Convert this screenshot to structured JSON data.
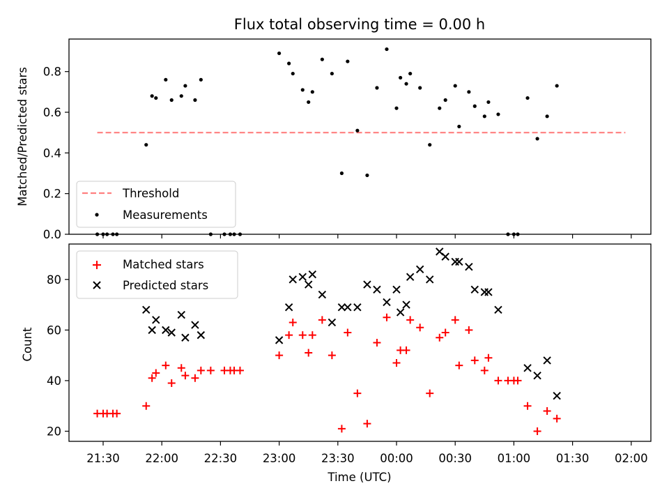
{
  "chart_data": [
    {
      "type": "scatter",
      "title": "Flux total observing time = 0.00 h",
      "ylabel": "Matched/Predicted stars",
      "xlabel": "",
      "ylim": [
        0,
        0.96
      ],
      "yticks": [
        "0.0",
        "0.2",
        "0.4",
        "0.6",
        "0.8"
      ],
      "legend_position": "lower-left",
      "threshold": {
        "name": "Threshold",
        "value": 0.5,
        "x_start": "21:27",
        "x_end": "01:57",
        "color": "#ff7f7f"
      },
      "series": [
        {
          "name": "Measurements",
          "color": "#000000",
          "points": [
            [
              "21:27",
              0.0
            ],
            [
              "21:30",
              0.0
            ],
            [
              "21:32",
              0.0
            ],
            [
              "21:35",
              0.0
            ],
            [
              "21:37",
              0.0
            ],
            [
              "21:52",
              0.44
            ],
            [
              "21:55",
              0.68
            ],
            [
              "21:57",
              0.67
            ],
            [
              "22:02",
              0.76
            ],
            [
              "22:05",
              0.66
            ],
            [
              "22:10",
              0.68
            ],
            [
              "22:12",
              0.73
            ],
            [
              "22:17",
              0.66
            ],
            [
              "22:20",
              0.76
            ],
            [
              "22:25",
              0.0
            ],
            [
              "22:32",
              0.0
            ],
            [
              "22:35",
              0.0
            ],
            [
              "22:37",
              0.0
            ],
            [
              "22:40",
              0.0
            ],
            [
              "23:00",
              0.89
            ],
            [
              "23:05",
              0.84
            ],
            [
              "23:07",
              0.79
            ],
            [
              "23:12",
              0.71
            ],
            [
              "23:15",
              0.65
            ],
            [
              "23:17",
              0.7
            ],
            [
              "23:22",
              0.86
            ],
            [
              "23:27",
              0.79
            ],
            [
              "23:32",
              0.3
            ],
            [
              "23:35",
              0.85
            ],
            [
              "23:40",
              0.51
            ],
            [
              "23:45",
              0.29
            ],
            [
              "23:50",
              0.72
            ],
            [
              "23:55",
              0.91
            ],
            [
              "00:00",
              0.62
            ],
            [
              "00:02",
              0.77
            ],
            [
              "00:05",
              0.74
            ],
            [
              "00:07",
              0.79
            ],
            [
              "00:12",
              0.72
            ],
            [
              "00:17",
              0.44
            ],
            [
              "00:22",
              0.62
            ],
            [
              "00:25",
              0.66
            ],
            [
              "00:30",
              0.73
            ],
            [
              "00:32",
              0.53
            ],
            [
              "00:37",
              0.7
            ],
            [
              "00:40",
              0.63
            ],
            [
              "00:45",
              0.58
            ],
            [
              "00:47",
              0.65
            ],
            [
              "00:52",
              0.59
            ],
            [
              "00:57",
              0.0
            ],
            [
              "01:00",
              0.0
            ],
            [
              "01:02",
              0.0
            ],
            [
              "01:07",
              0.67
            ],
            [
              "01:12",
              0.47
            ],
            [
              "01:17",
              0.58
            ],
            [
              "01:22",
              0.73
            ]
          ]
        }
      ]
    },
    {
      "type": "scatter",
      "xlabel": "Time (UTC)",
      "ylabel": "Count",
      "ylim": [
        16,
        94
      ],
      "yticks": [
        "20",
        "40",
        "60",
        "80"
      ],
      "xticks": [
        "21:30",
        "22:00",
        "22:30",
        "23:00",
        "23:30",
        "00:00",
        "00:30",
        "01:00",
        "01:30",
        "02:00"
      ],
      "legend_position": "upper-left",
      "series": [
        {
          "name": "Matched stars",
          "marker": "plus",
          "color": "#ff0000",
          "points": [
            [
              "21:27",
              27
            ],
            [
              "21:30",
              27
            ],
            [
              "21:32",
              27
            ],
            [
              "21:35",
              27
            ],
            [
              "21:37",
              27
            ],
            [
              "21:52",
              30
            ],
            [
              "21:55",
              41
            ],
            [
              "21:57",
              43
            ],
            [
              "22:02",
              46
            ],
            [
              "22:05",
              39
            ],
            [
              "22:10",
              45
            ],
            [
              "22:12",
              42
            ],
            [
              "22:17",
              41
            ],
            [
              "22:20",
              44
            ],
            [
              "22:25",
              44
            ],
            [
              "22:32",
              44
            ],
            [
              "22:35",
              44
            ],
            [
              "22:37",
              44
            ],
            [
              "22:40",
              44
            ],
            [
              "23:00",
              50
            ],
            [
              "23:05",
              58
            ],
            [
              "23:07",
              63
            ],
            [
              "23:12",
              58
            ],
            [
              "23:15",
              51
            ],
            [
              "23:17",
              58
            ],
            [
              "23:22",
              64
            ],
            [
              "23:27",
              50
            ],
            [
              "23:32",
              21
            ],
            [
              "23:35",
              59
            ],
            [
              "23:40",
              35
            ],
            [
              "23:45",
              23
            ],
            [
              "23:50",
              55
            ],
            [
              "23:55",
              65
            ],
            [
              "00:00",
              47
            ],
            [
              "00:02",
              52
            ],
            [
              "00:05",
              52
            ],
            [
              "00:07",
              64
            ],
            [
              "00:12",
              61
            ],
            [
              "00:17",
              35
            ],
            [
              "00:22",
              57
            ],
            [
              "00:25",
              59
            ],
            [
              "00:30",
              64
            ],
            [
              "00:32",
              46
            ],
            [
              "00:37",
              60
            ],
            [
              "00:40",
              48
            ],
            [
              "00:45",
              44
            ],
            [
              "00:47",
              49
            ],
            [
              "00:52",
              40
            ],
            [
              "00:57",
              40
            ],
            [
              "01:00",
              40
            ],
            [
              "01:02",
              40
            ],
            [
              "01:07",
              30
            ],
            [
              "01:12",
              20
            ],
            [
              "01:17",
              28
            ],
            [
              "01:22",
              25
            ]
          ]
        },
        {
          "name": "Predicted stars",
          "marker": "x",
          "color": "#000000",
          "points": [
            [
              "21:52",
              68
            ],
            [
              "21:55",
              60
            ],
            [
              "21:57",
              64
            ],
            [
              "22:02",
              60
            ],
            [
              "22:05",
              59
            ],
            [
              "22:10",
              66
            ],
            [
              "22:12",
              57
            ],
            [
              "22:17",
              62
            ],
            [
              "22:20",
              58
            ],
            [
              "23:00",
              56
            ],
            [
              "23:05",
              69
            ],
            [
              "23:07",
              80
            ],
            [
              "23:12",
              81
            ],
            [
              "23:15",
              78
            ],
            [
              "23:17",
              82
            ],
            [
              "23:22",
              74
            ],
            [
              "23:27",
              63
            ],
            [
              "23:32",
              69
            ],
            [
              "23:35",
              69
            ],
            [
              "23:40",
              69
            ],
            [
              "23:45",
              78
            ],
            [
              "23:50",
              76
            ],
            [
              "23:55",
              71
            ],
            [
              "00:00",
              76
            ],
            [
              "00:02",
              67
            ],
            [
              "00:05",
              70
            ],
            [
              "00:07",
              81
            ],
            [
              "00:12",
              84
            ],
            [
              "00:17",
              80
            ],
            [
              "00:22",
              91
            ],
            [
              "00:25",
              89
            ],
            [
              "00:30",
              87
            ],
            [
              "00:32",
              87
            ],
            [
              "00:37",
              85
            ],
            [
              "00:40",
              76
            ],
            [
              "00:45",
              75
            ],
            [
              "00:47",
              75
            ],
            [
              "00:52",
              68
            ],
            [
              "01:07",
              45
            ],
            [
              "01:12",
              42
            ],
            [
              "01:17",
              48
            ],
            [
              "01:22",
              34
            ]
          ]
        }
      ]
    }
  ]
}
